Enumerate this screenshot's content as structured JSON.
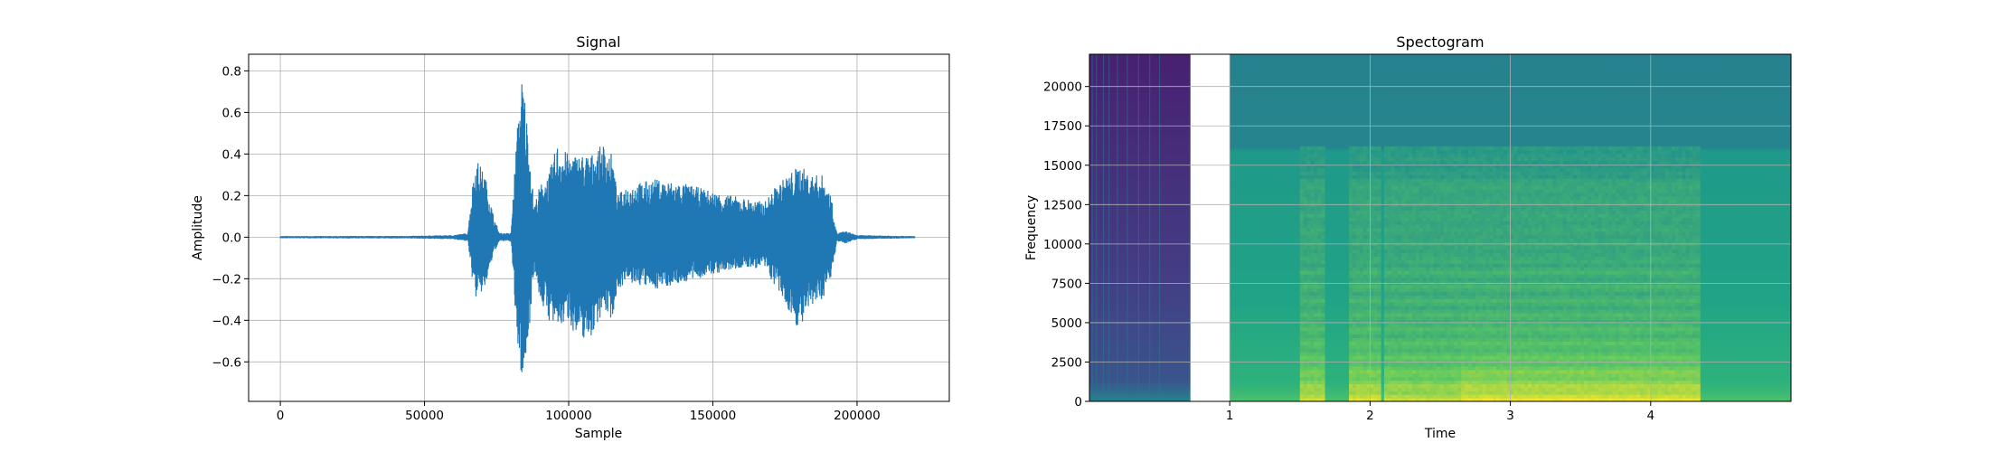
{
  "chart_data": [
    {
      "type": "line",
      "title": "Signal",
      "xlabel": "Sample",
      "ylabel": "Amplitude",
      "xlim": [
        -11000,
        232000
      ],
      "ylim": [
        -0.79,
        0.88
      ],
      "grid": true,
      "color": "#1f77b4",
      "xticks": [
        0,
        50000,
        100000,
        150000,
        200000
      ],
      "xtick_labels": [
        "0",
        "50000",
        "100000",
        "150000",
        "200000"
      ],
      "yticks": [
        -0.6,
        -0.4,
        -0.2,
        0.0,
        0.2,
        0.4,
        0.6,
        0.8
      ],
      "ytick_labels": [
        "−0.6",
        "−0.4",
        "−0.2",
        "0.0",
        "0.2",
        "0.4",
        "0.6",
        "0.8"
      ],
      "envelope": [
        {
          "x": 0,
          "max": 0.005,
          "min": -0.005
        },
        {
          "x": 45000,
          "max": 0.006,
          "min": -0.006
        },
        {
          "x": 60000,
          "max": 0.01,
          "min": -0.01
        },
        {
          "x": 65000,
          "max": 0.02,
          "min": -0.02
        },
        {
          "x": 67000,
          "max": 0.3,
          "min": -0.25
        },
        {
          "x": 68000,
          "max": 0.38,
          "min": -0.3
        },
        {
          "x": 71000,
          "max": 0.3,
          "min": -0.25
        },
        {
          "x": 74000,
          "max": 0.1,
          "min": -0.08
        },
        {
          "x": 76000,
          "max": 0.02,
          "min": -0.02
        },
        {
          "x": 80000,
          "max": 0.02,
          "min": -0.02
        },
        {
          "x": 82000,
          "max": 0.5,
          "min": -0.5
        },
        {
          "x": 84000,
          "max": 0.8,
          "min": -0.72
        },
        {
          "x": 86000,
          "max": 0.5,
          "min": -0.5
        },
        {
          "x": 88000,
          "max": 0.15,
          "min": -0.15
        },
        {
          "x": 90000,
          "max": 0.25,
          "min": -0.3
        },
        {
          "x": 93000,
          "max": 0.3,
          "min": -0.4
        },
        {
          "x": 96000,
          "max": 0.45,
          "min": -0.45
        },
        {
          "x": 100000,
          "max": 0.4,
          "min": -0.4
        },
        {
          "x": 103000,
          "max": 0.4,
          "min": -0.5
        },
        {
          "x": 108000,
          "max": 0.4,
          "min": -0.48
        },
        {
          "x": 112000,
          "max": 0.45,
          "min": -0.35
        },
        {
          "x": 115000,
          "max": 0.4,
          "min": -0.4
        },
        {
          "x": 117000,
          "max": 0.2,
          "min": -0.25
        },
        {
          "x": 120000,
          "max": 0.25,
          "min": -0.22
        },
        {
          "x": 130000,
          "max": 0.28,
          "min": -0.25
        },
        {
          "x": 140000,
          "max": 0.26,
          "min": -0.22
        },
        {
          "x": 150000,
          "max": 0.22,
          "min": -0.18
        },
        {
          "x": 160000,
          "max": 0.19,
          "min": -0.15
        },
        {
          "x": 168000,
          "max": 0.17,
          "min": -0.15
        },
        {
          "x": 172000,
          "max": 0.25,
          "min": -0.25
        },
        {
          "x": 176000,
          "max": 0.3,
          "min": -0.35
        },
        {
          "x": 180000,
          "max": 0.35,
          "min": -0.45
        },
        {
          "x": 184000,
          "max": 0.3,
          "min": -0.35
        },
        {
          "x": 188000,
          "max": 0.3,
          "min": -0.3
        },
        {
          "x": 191000,
          "max": 0.2,
          "min": -0.2
        },
        {
          "x": 193000,
          "max": 0.02,
          "min": -0.02
        },
        {
          "x": 196000,
          "max": 0.03,
          "min": -0.03
        },
        {
          "x": 200000,
          "max": 0.01,
          "min": -0.01
        },
        {
          "x": 220000,
          "max": 0.005,
          "min": -0.005
        }
      ]
    },
    {
      "type": "heatmap",
      "title": "Spectogram",
      "xlabel": "Time",
      "ylabel": "Frequency",
      "xlim": [
        0,
        5
      ],
      "ylim": [
        0,
        22050
      ],
      "grid": true,
      "xticks": [
        1,
        2,
        3,
        4
      ],
      "xtick_labels": [
        "1",
        "2",
        "3",
        "4"
      ],
      "yticks": [
        0,
        2500,
        5000,
        7500,
        10000,
        12500,
        15000,
        17500,
        20000
      ],
      "ytick_labels": [
        "0",
        "2500",
        "5000",
        "7500",
        "10000",
        "12500",
        "15000",
        "17500",
        "20000"
      ],
      "colormap": "viridis",
      "blank_region": [
        0.72,
        1.0
      ],
      "leading_region": {
        "range": [
          0,
          0.72
        ],
        "color": "#462a80"
      },
      "upper_band_cutoff": 16000,
      "speech_regions": [
        {
          "range": [
            1.5,
            1.65
          ],
          "intensity": 0.8
        },
        {
          "range": [
            1.85,
            2.05
          ],
          "intensity": 0.85
        },
        {
          "range": [
            2.1,
            2.65
          ],
          "intensity": 0.75
        },
        {
          "range": [
            2.65,
            4.35
          ],
          "intensity": 0.9
        }
      ],
      "harmonic_spacing": 900
    }
  ]
}
